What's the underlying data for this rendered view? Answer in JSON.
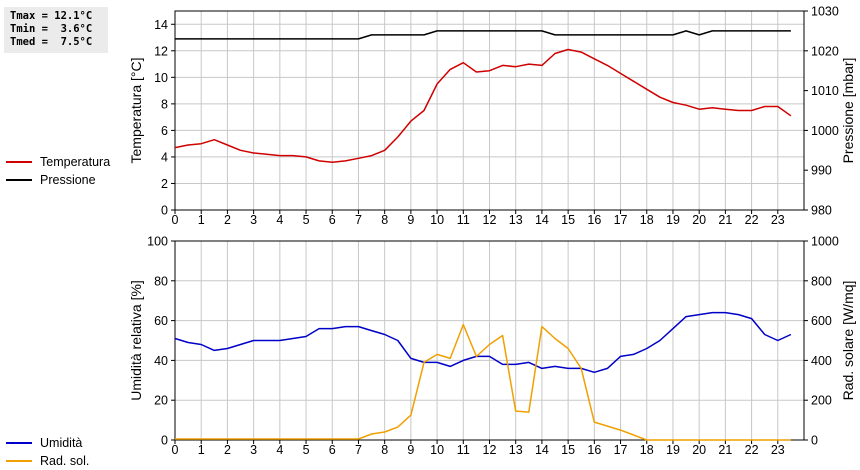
{
  "stats": {
    "tmax": "Tmax = 12.1°C",
    "tmin": "Tmin =  3.6°C",
    "tmed": "Tmed =  7.5°C"
  },
  "colors": {
    "temperature": "#d00000",
    "pressure": "#000000",
    "humidity": "#0000c8",
    "radiation": "#f0a000",
    "grid": "#c8c8c8"
  },
  "chart_data": [
    {
      "type": "line",
      "x_ticks": [
        "0",
        "1",
        "2",
        "3",
        "4",
        "5",
        "6",
        "7",
        "8",
        "9",
        "10",
        "11",
        "12",
        "13",
        "14",
        "15",
        "16",
        "17",
        "18",
        "19",
        "20",
        "21",
        "22",
        "23"
      ],
      "xlim": [
        0,
        24
      ],
      "ylabel_left": "Temperatura [°C]",
      "ylabel_right": "Pressione [mbar]",
      "ylim_left": [
        0,
        15
      ],
      "yticks_left": [
        "0",
        "2",
        "4",
        "6",
        "8",
        "10",
        "12",
        "14"
      ],
      "ylim_right": [
        980,
        1030
      ],
      "yticks_right": [
        "980",
        "990",
        "1000",
        "1010",
        "1020",
        "1030"
      ],
      "grid": true,
      "legend": [
        "Temperatura",
        "Pressione"
      ],
      "series": [
        {
          "name": "Temperatura",
          "axis": "left",
          "x": [
            0,
            0.5,
            1,
            1.5,
            2,
            2.5,
            3,
            3.5,
            4,
            4.5,
            5,
            5.5,
            6,
            6.5,
            7,
            7.5,
            8,
            8.5,
            9,
            9.5,
            10,
            10.5,
            11,
            11.5,
            12,
            12.5,
            13,
            13.5,
            14,
            14.5,
            15,
            15.5,
            16,
            16.5,
            17,
            17.5,
            18,
            18.5,
            19,
            19.5,
            20,
            20.5,
            21,
            21.5,
            22,
            22.5,
            23,
            23.5
          ],
          "values": [
            4.7,
            4.9,
            5.0,
            5.3,
            4.9,
            4.5,
            4.3,
            4.2,
            4.1,
            4.1,
            4.0,
            3.7,
            3.6,
            3.7,
            3.9,
            4.1,
            4.5,
            5.5,
            6.7,
            7.5,
            9.5,
            10.6,
            11.1,
            10.4,
            10.5,
            10.9,
            10.8,
            11.0,
            10.9,
            11.8,
            12.1,
            11.9,
            11.4,
            10.9,
            10.3,
            9.7,
            9.1,
            8.5,
            8.1,
            7.9,
            7.6,
            7.7,
            7.6,
            7.5,
            7.5,
            7.8,
            7.8,
            7.1
          ]
        },
        {
          "name": "Pressione",
          "axis": "right",
          "x": [
            0,
            7,
            7.5,
            9.5,
            10,
            14,
            14.5,
            19,
            19.5,
            20,
            20.5,
            23.5
          ],
          "values": [
            1023,
            1023,
            1024,
            1024,
            1025,
            1025,
            1024,
            1024,
            1025,
            1024,
            1025,
            1025
          ]
        }
      ]
    },
    {
      "type": "line",
      "x_ticks": [
        "0",
        "1",
        "2",
        "3",
        "4",
        "5",
        "6",
        "7",
        "8",
        "9",
        "10",
        "11",
        "12",
        "13",
        "14",
        "15",
        "16",
        "17",
        "18",
        "19",
        "20",
        "21",
        "22",
        "23"
      ],
      "xlim": [
        0,
        24
      ],
      "ylabel_left": "Umidità relativa [%]",
      "ylabel_right": "Rad. solare [W/mq]",
      "ylim_left": [
        0,
        100
      ],
      "yticks_left": [
        "0",
        "20",
        "40",
        "60",
        "80",
        "100"
      ],
      "ylim_right": [
        0,
        1000
      ],
      "yticks_right": [
        "0",
        "200",
        "400",
        "600",
        "800",
        "1000"
      ],
      "grid": true,
      "legend": [
        "Umidità",
        "Rad. sol."
      ],
      "series": [
        {
          "name": "Umidità",
          "axis": "left",
          "x": [
            0,
            0.5,
            1,
            1.5,
            2,
            2.5,
            3,
            3.5,
            4,
            4.5,
            5,
            5.5,
            6,
            6.5,
            7,
            7.5,
            8,
            8.5,
            9,
            9.5,
            10,
            10.5,
            11,
            11.5,
            12,
            12.5,
            13,
            13.5,
            14,
            14.5,
            15,
            15.5,
            16,
            16.5,
            17,
            17.5,
            18,
            18.5,
            19,
            19.5,
            20,
            20.5,
            21,
            21.5,
            22,
            22.5,
            23,
            23.5
          ],
          "values": [
            51,
            49,
            48,
            45,
            46,
            48,
            50,
            50,
            50,
            51,
            52,
            56,
            56,
            57,
            57,
            55,
            53,
            50,
            41,
            39,
            39,
            37,
            40,
            42,
            42,
            38,
            38,
            39,
            36,
            37,
            36,
            36,
            34,
            36,
            42,
            43,
            46,
            50,
            56,
            62,
            63,
            64,
            64,
            63,
            61,
            53,
            50,
            53
          ]
        },
        {
          "name": "Rad. sol.",
          "axis": "right",
          "x": [
            0,
            0.5,
            1,
            1.5,
            2,
            2.5,
            3,
            3.5,
            4,
            4.5,
            5,
            5.5,
            6,
            6.5,
            7,
            7.5,
            8,
            8.5,
            9,
            9.5,
            10,
            10.5,
            11,
            11.5,
            12,
            12.5,
            13,
            13.5,
            14,
            14.5,
            15,
            15.5,
            16,
            16.5,
            17,
            17.5,
            18,
            18.5,
            19,
            19.5,
            20,
            20.5,
            21,
            21.5,
            22,
            22.5,
            23,
            23.5
          ],
          "values": [
            5,
            5,
            5,
            5,
            5,
            5,
            5,
            5,
            5,
            5,
            5,
            5,
            5,
            5,
            5,
            30,
            40,
            65,
            125,
            390,
            430,
            410,
            580,
            420,
            480,
            525,
            145,
            140,
            570,
            510,
            460,
            360,
            90,
            70,
            50,
            25,
            0,
            0,
            0,
            0,
            0,
            0,
            0,
            0,
            0,
            0,
            0,
            0
          ]
        }
      ]
    }
  ]
}
